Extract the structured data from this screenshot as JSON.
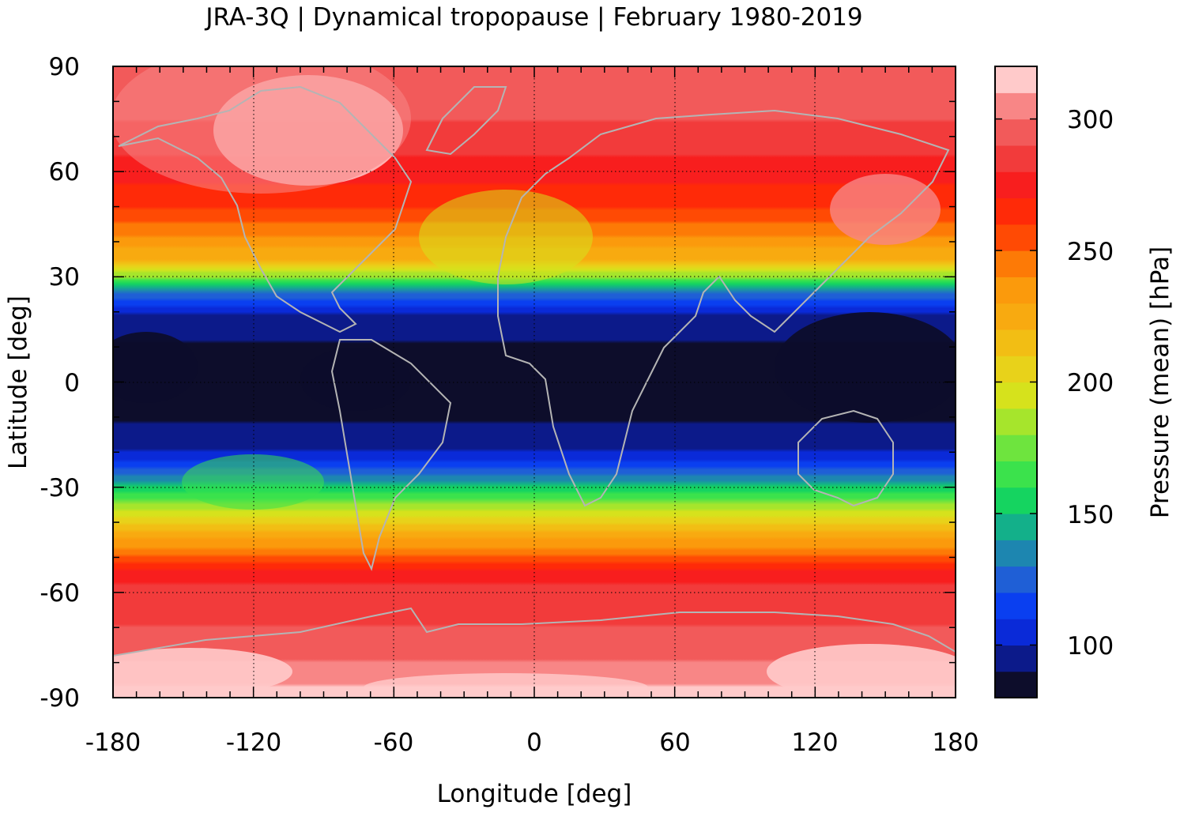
{
  "chart_data": {
    "type": "heatmap",
    "title": "JRA-3Q | Dynamical tropopause | February 1980-2019",
    "xlabel": "Longitude [deg]",
    "ylabel": "Latitude [deg]",
    "colorbar_label": "Pressure (mean) [hPa]",
    "xlim": [
      -180,
      180
    ],
    "ylim": [
      -90,
      90
    ],
    "xticks": [
      -180,
      -120,
      -60,
      0,
      60,
      120,
      180
    ],
    "yticks": [
      90,
      60,
      30,
      0,
      -30,
      -60,
      -90
    ],
    "x_tick_labels": [
      "-180",
      "-120",
      "-60",
      "0",
      "60",
      "120",
      "180"
    ],
    "y_tick_labels": [
      "90",
      "60",
      "30",
      "0",
      "-30",
      "-60",
      "-90"
    ],
    "colorbar_range": [
      80,
      320
    ],
    "colorbar_ticks": [
      100,
      150,
      200,
      250,
      300
    ],
    "colorbar_tick_labels": [
      "100",
      "150",
      "200",
      "250",
      "300"
    ],
    "levels": [
      80,
      90,
      100,
      110,
      120,
      130,
      140,
      150,
      160,
      170,
      180,
      190,
      200,
      210,
      220,
      230,
      240,
      250,
      260,
      270,
      280,
      290,
      300,
      310,
      320
    ],
    "level_colors": [
      "#0d0d2b",
      "#0c1a8a",
      "#0a2ad8",
      "#0a3ff0",
      "#1f5fd6",
      "#1d86b0",
      "#13b08a",
      "#15d460",
      "#3be24c",
      "#6ee43e",
      "#a6e52c",
      "#d6e21c",
      "#e8d21a",
      "#f2be14",
      "#f8aa10",
      "#fb9a0c",
      "#fd7a06",
      "#ff4a04",
      "#ff2a08",
      "#f81e1e",
      "#f23b3b",
      "#f25a5a",
      "#f88686",
      "#ffcaca"
    ],
    "zonal_mean_profile": {
      "lat": [
        90,
        75,
        60,
        50,
        40,
        35,
        30,
        25,
        20,
        10,
        0,
        -10,
        -20,
        -25,
        -30,
        -35,
        -40,
        -45,
        -50,
        -55,
        -60,
        -70,
        -80,
        -90
      ],
      "pressure_hPa": [
        295,
        290,
        275,
        260,
        235,
        220,
        180,
        125,
        100,
        88,
        85,
        88,
        100,
        120,
        150,
        180,
        205,
        230,
        250,
        275,
        285,
        290,
        300,
        315
      ]
    },
    "grid": true,
    "coastlines": true
  }
}
